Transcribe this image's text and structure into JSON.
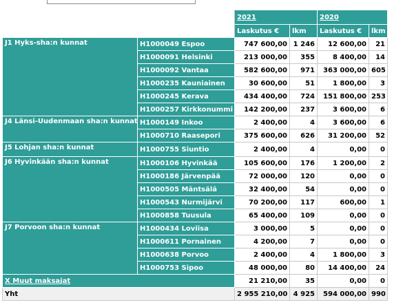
{
  "header": {
    "years": [
      "2021",
      "2020"
    ],
    "columns": [
      "Laskutus €",
      "lkm",
      "Laskutus €",
      "lkm"
    ]
  },
  "groups": [
    {
      "name": "J1 Hyks-sha:n kunnat",
      "rows": [
        [
          "H1000049 Espoo",
          "747 600,00",
          "1 246",
          "12 600,00",
          "21"
        ],
        [
          "H1000091 Helsinki",
          "213 000,00",
          "355",
          "8 400,00",
          "14"
        ],
        [
          "H1000092 Vantaa",
          "582 600,00",
          "971",
          "363 000,00",
          "605"
        ],
        [
          "H1000235 Kauniainen",
          "30 600,00",
          "51",
          "1 800,00",
          "3"
        ],
        [
          "H1000245 Kerava",
          "434 400,00",
          "724",
          "151 800,00",
          "253"
        ],
        [
          "H1000257 Kirkkonummi",
          "142 200,00",
          "237",
          "3 600,00",
          "6"
        ]
      ]
    },
    {
      "name": "J4 Länsi-Uudenmaan sha:n kunnat",
      "rows": [
        [
          "H1000149 Inkoo",
          "2 400,00",
          "4",
          "3 600,00",
          "6"
        ],
        [
          "H1000710 Raasepori",
          "375 600,00",
          "626",
          "31 200,00",
          "52"
        ]
      ]
    },
    {
      "name": "J5 Lohjan sha:n kunnat",
      "rows": [
        [
          "H1000755 Siuntio",
          "2 400,00",
          "4",
          "0,00",
          "0"
        ]
      ]
    },
    {
      "name": "J6 Hyvinkään sha:n kunnat",
      "rows": [
        [
          "H1000106 Hyvinkää",
          "105 600,00",
          "176",
          "1 200,00",
          "2"
        ],
        [
          "H1000186 Järvenpää",
          "72 000,00",
          "120",
          "0,00",
          "0"
        ],
        [
          "H1000505 Mäntsälä",
          "32 400,00",
          "54",
          "0,00",
          "0"
        ],
        [
          "H1000543 Nurmijärvi",
          "70 200,00",
          "117",
          "600,00",
          "1"
        ],
        [
          "H1000858 Tuusula",
          "65 400,00",
          "109",
          "0,00",
          "0"
        ]
      ]
    },
    {
      "name": "J7 Porvoon sha:n kunnat",
      "rows": [
        [
          "H1000434 Loviisa",
          "3 000,00",
          "5",
          "0,00",
          "0"
        ],
        [
          "H1000611 Pornainen",
          "4 200,00",
          "7",
          "0,00",
          "0"
        ],
        [
          "H1000638 Porvoo",
          "2 400,00",
          "4",
          "1 800,00",
          "3"
        ],
        [
          "H1000753 Sipoo",
          "48 000,00",
          "80",
          "14 400,00",
          "24"
        ]
      ]
    }
  ],
  "other": [
    "X Muut maksajat",
    "21 210,00",
    "35",
    "0,00",
    "0"
  ],
  "total": [
    "Yht",
    "2 955 210,00",
    "4 925",
    "594 000,00",
    "990"
  ]
}
